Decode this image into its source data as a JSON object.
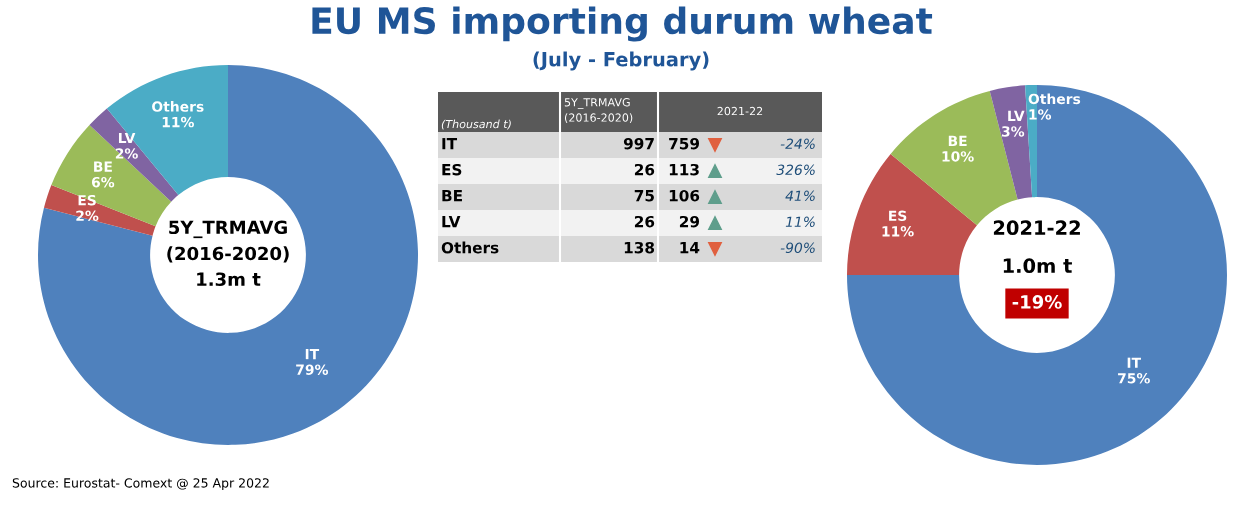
{
  "chart_data": [
    {
      "type": "donut",
      "categories": [
        "IT",
        "ES",
        "BE",
        "LV",
        "Others"
      ],
      "values": [
        79,
        2,
        6,
        2,
        11
      ],
      "value_labels": [
        "79%",
        "2%",
        "6%",
        "2%",
        "11%"
      ],
      "colors": [
        "#4f81bd",
        "#c0504d",
        "#9bbb59",
        "#8064a2",
        "#4bacc6"
      ],
      "annotations": [
        "5Y_TRMAVG\n(2016-2020)\n1.3m t",
        "Source: Eurostat- Comext @ 25 Apr 2022"
      ]
    },
    {
      "type": "other",
      "title": "EU MS importing durum wheat",
      "subtitle": "(July - February)",
      "categories": [
        "IT",
        "ES",
        "BE",
        "LV",
        "Others"
      ],
      "annotations": [
        "(Thousand t)"
      ],
      "data_labels": true,
      "series": [
        {
          "name": "5Y_TRMAVG\n(2016-2020)",
          "colors": [
            "#d9d9d9",
            "#f2f2f2",
            "#d9d9d9",
            "#f2f2f2",
            "#d9d9d9"
          ],
          "values": [
            997,
            26,
            75,
            26,
            138
          ]
        },
        {
          "name": "2021-22",
          "values": [
            759,
            113,
            106,
            29,
            14
          ]
        },
        {
          "values": [
            -24,
            326,
            41,
            11,
            -90
          ],
          "value_labels": [
            "-24%",
            "326%",
            "41%",
            "11%",
            "-90%"
          ],
          "colors": [
            "#e0603f",
            "#5f9e8c",
            "#5f9e8c",
            "#5f9e8c",
            "#e0603f"
          ]
        }
      ]
    },
    {
      "type": "donut",
      "categories": [
        "IT",
        "ES",
        "BE",
        "LV",
        "Others"
      ],
      "values": [
        75,
        11,
        10,
        3,
        1
      ],
      "value_labels": [
        "75%",
        "11%",
        "10%",
        "3%",
        "1%"
      ],
      "colors": [
        "#4f81bd",
        "#c0504d",
        "#9bbb59",
        "#8064a2",
        "#4bacc6"
      ],
      "annotations": [
        "2021-22",
        "1.0m t",
        "-19%"
      ]
    }
  ]
}
